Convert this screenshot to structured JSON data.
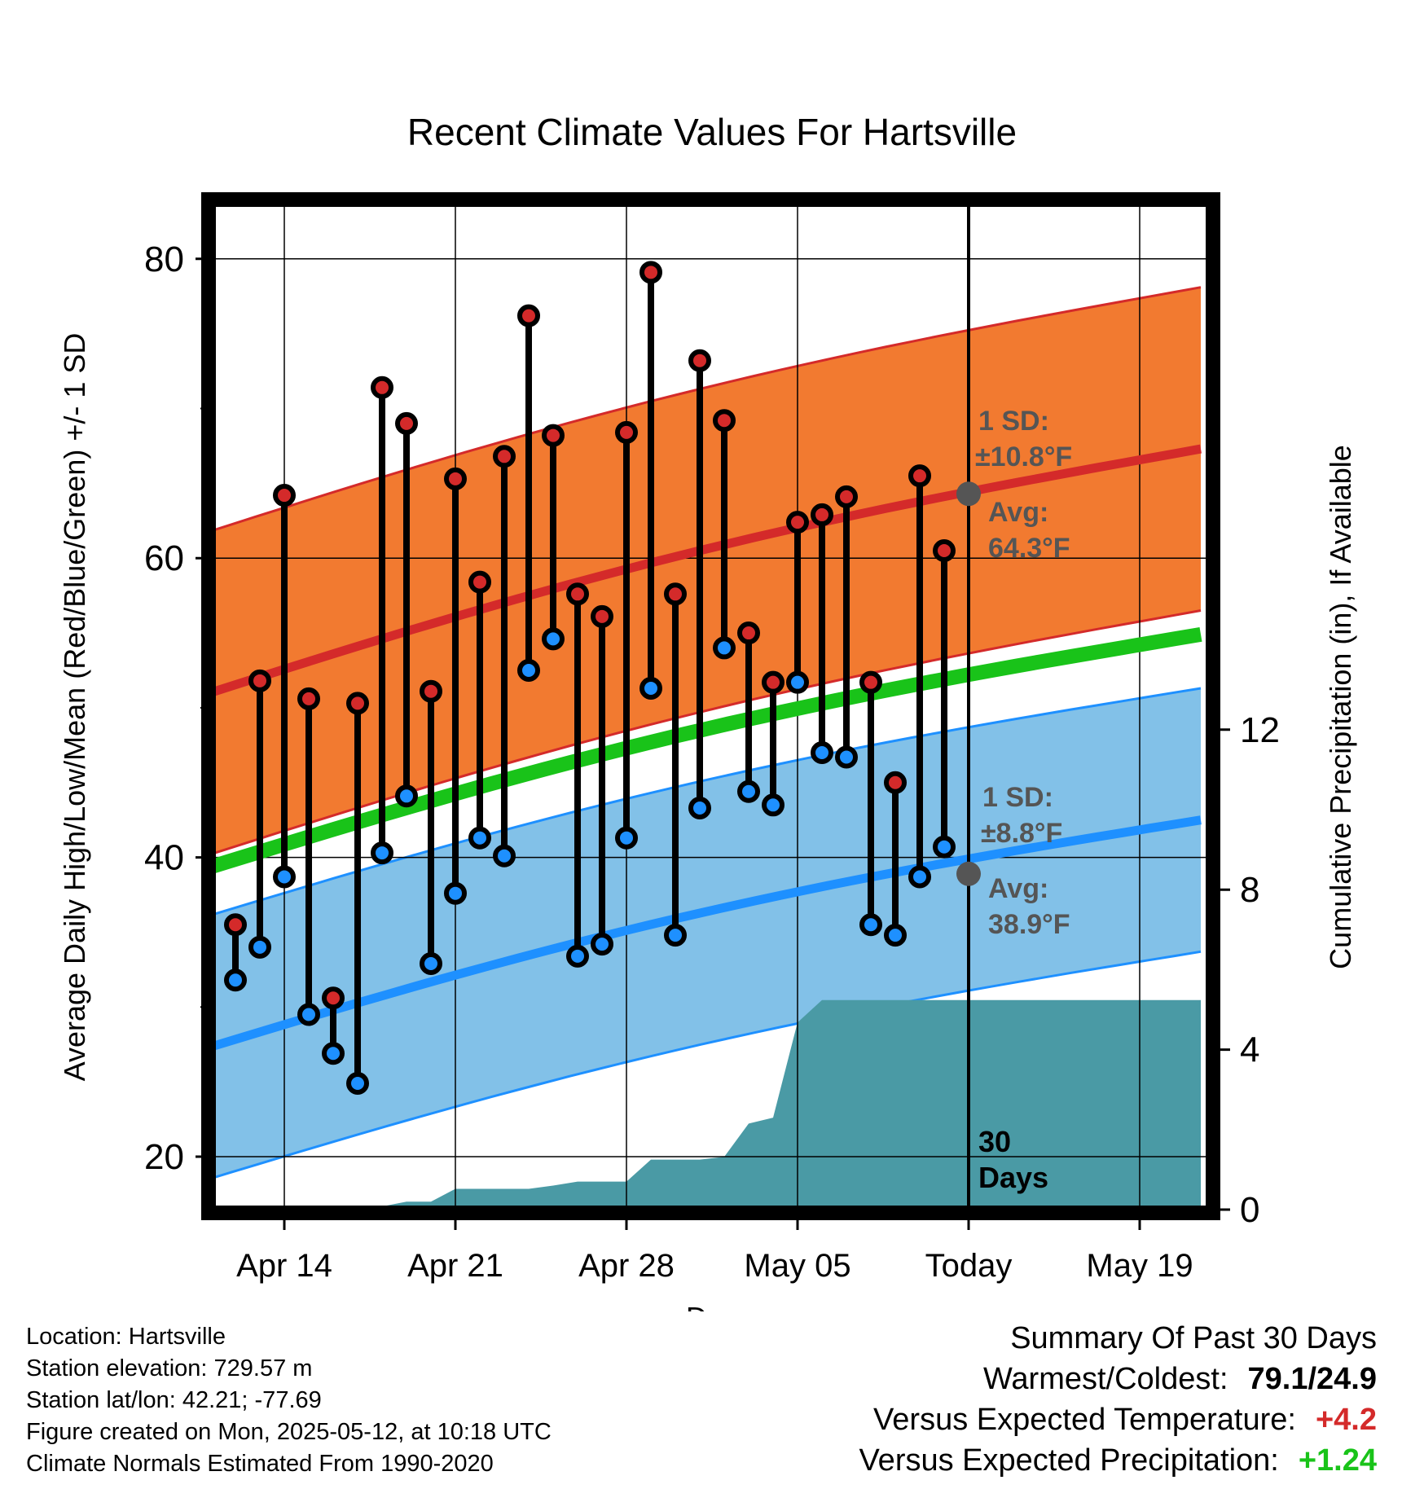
{
  "chart_data": {
    "type": "line",
    "title": "Recent Climate Values For Hartsville",
    "xlabel": "Day",
    "ylabel": "Average Daily High/Low/Mean (Red/Blue/Green) +/- 1 SD",
    "y2label": "Cumulative Precipitation (in), If Available",
    "ylim": [
      17,
      85
    ],
    "y2lim": [
      0,
      24.3
    ],
    "y_ticks": [
      20,
      40,
      60,
      80
    ],
    "y2_ticks": [
      0,
      4,
      8,
      12
    ],
    "x_ticks": [
      "Apr 14",
      "Apr 21",
      "Apr 28",
      "May 05",
      "Today",
      "May 19"
    ],
    "x_tick_days": [
      14,
      21,
      28,
      35,
      42,
      49
    ],
    "xlim": [
      11,
      51.5
    ],
    "grid": true,
    "today_day": 42,
    "today_label": "30 Days",
    "days": [
      12,
      13,
      14,
      15,
      16,
      17,
      18,
      19,
      20,
      21,
      22,
      23,
      24,
      25,
      26,
      27,
      28,
      29,
      30,
      31,
      32,
      33,
      34,
      35,
      36,
      37,
      38,
      39,
      40,
      41
    ],
    "observed_high": [
      35.5,
      51.8,
      64.2,
      50.6,
      30.6,
      50.3,
      71.4,
      69.0,
      51.1,
      65.3,
      58.4,
      66.8,
      76.2,
      68.2,
      57.6,
      56.1,
      68.4,
      79.1,
      57.6,
      73.2,
      69.2,
      55.0,
      51.7,
      62.4,
      62.9,
      64.1,
      51.7,
      45.0,
      65.5,
      60.5
    ],
    "observed_low": [
      31.8,
      34.0,
      38.7,
      29.5,
      26.9,
      24.9,
      40.3,
      44.1,
      32.9,
      37.6,
      41.3,
      40.1,
      52.5,
      54.6,
      33.4,
      34.2,
      41.3,
      51.3,
      34.8,
      43.3,
      54.0,
      44.4,
      43.5,
      51.7,
      47.0,
      46.7,
      35.5,
      34.8,
      38.7,
      40.7
    ],
    "high_points_color": "#d42a2a",
    "low_points_color": "#1e90ff",
    "normal_days": [
      8.5,
      51.5
    ],
    "normal_high": [
      49.7,
      67.3
    ],
    "normal_high_sd": 10.8,
    "normal_low": [
      26.1,
      42.5
    ],
    "normal_low_sd": 8.8,
    "normal_mean": [
      38.1,
      54.9
    ],
    "precip_days": [
      11,
      14,
      15,
      16,
      18,
      19,
      20,
      21,
      22,
      23,
      24,
      25,
      26,
      27,
      28,
      29,
      30,
      31,
      32,
      33,
      34,
      35,
      36,
      37,
      38,
      39,
      40,
      41,
      51.5
    ],
    "precip_cumulative": [
      0,
      0,
      0.08,
      0.08,
      0.08,
      0.2,
      0.2,
      0.52,
      0.52,
      0.52,
      0.52,
      0.6,
      0.7,
      0.7,
      0.7,
      1.25,
      1.25,
      1.25,
      1.32,
      2.15,
      2.3,
      4.68,
      5.24,
      5.24,
      5.24,
      5.24,
      5.24,
      5.24,
      5.24
    ],
    "annotations": {
      "high_sd_label": "1 SD:",
      "high_sd_value": "±10.8°F",
      "high_avg_label": "Avg:",
      "high_avg_value": "64.3°F",
      "today_high_avg": 64.3,
      "low_sd_label": "1 SD:",
      "low_sd_value": "±8.8°F",
      "low_avg_label": "Avg:",
      "low_avg_value": "38.9°F",
      "today_low_avg": 38.9
    },
    "colors": {
      "high_band": "#f27a30",
      "high_band_edge": "#d42a2a",
      "high_mean_line": "#d42a2a",
      "low_band": "#82c1e8",
      "low_band_edge": "#1e90ff",
      "low_mean_line": "#1e90ff",
      "mean_line": "#19c319",
      "precip": "#4a9aa5",
      "annotation": "#555555"
    }
  },
  "info": {
    "location": "Location: Hartsville",
    "elevation": "Station elevation: 729.57 m",
    "latlon": "Station lat/lon: 42.21; -77.69",
    "created": "Figure created on Mon, 2025-05-12, at 10:18 UTC",
    "normals": "Climate Normals Estimated From 1990-2020"
  },
  "summary": {
    "heading": "Summary Of Past 30 Days",
    "warm_cold_label": "Warmest/Coldest:",
    "warm_cold_value": "79.1/24.9",
    "temp_label": "Versus Expected Temperature:",
    "temp_value": "+4.2",
    "precip_label": "Versus Expected Precipitation:",
    "precip_value": "+1.24"
  }
}
